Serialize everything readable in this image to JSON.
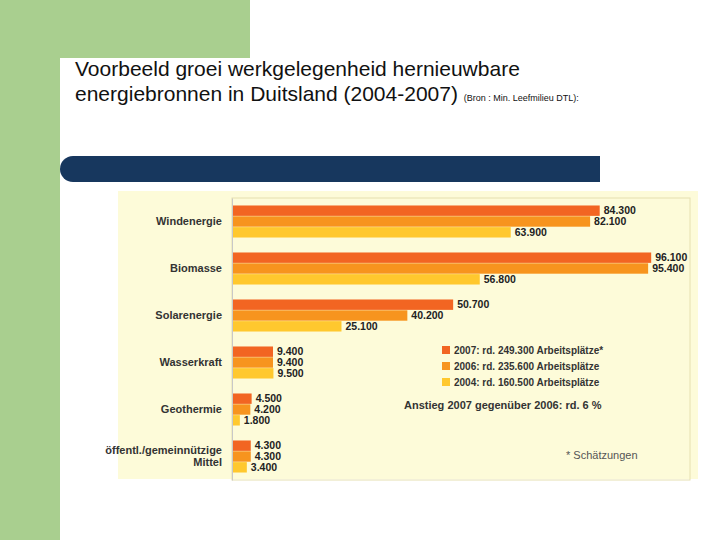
{
  "chart_data": {
    "type": "bar",
    "orientation": "horizontal",
    "title": "Voorbeeld groei werkgelegenheid hernieuwbare energiebronnen in Duitsland (2004-2007)",
    "subtitle": "(Bron : Min. Leefmilieu DTL):",
    "categories": [
      "Windenergie",
      "Biomasse",
      "Solarenergie",
      "Wasserkraft",
      "Geothermie",
      "öffentl./gemeinnützige Mittel"
    ],
    "series": [
      {
        "name": "2007: rd. 249.300 Arbeitsplätze*",
        "color": "#f26522",
        "values": [
          84300,
          96100,
          50700,
          9400,
          4500,
          4300
        ],
        "value_labels": [
          "84.300",
          "96.100",
          "50.700",
          "9.400",
          "4.500",
          "4.300"
        ]
      },
      {
        "name": "2006: rd. 235.600 Arbeitsplätze",
        "color": "#f7941e",
        "values": [
          82100,
          95400,
          40200,
          9400,
          4200,
          4300
        ],
        "value_labels": [
          "82.100",
          "95.400",
          "40.200",
          "9.400",
          "4.200",
          "4.300"
        ]
      },
      {
        "name": "2004: rd. 160.500 Arbeitsplätze",
        "color": "#ffc82e",
        "values": [
          63900,
          56800,
          25100,
          9500,
          1800,
          3400
        ],
        "value_labels": [
          "63.900",
          "56.800",
          "25.100",
          "9.500",
          "1.800",
          "3.400"
        ]
      }
    ],
    "xlim": [
      0,
      105000
    ],
    "tick_labels": false,
    "data_labels": true,
    "legend": "lower right",
    "annotations": [
      "Anstieg 2007 gegenüber 2006: rd. 6 %",
      "* Schätzungen"
    ]
  }
}
